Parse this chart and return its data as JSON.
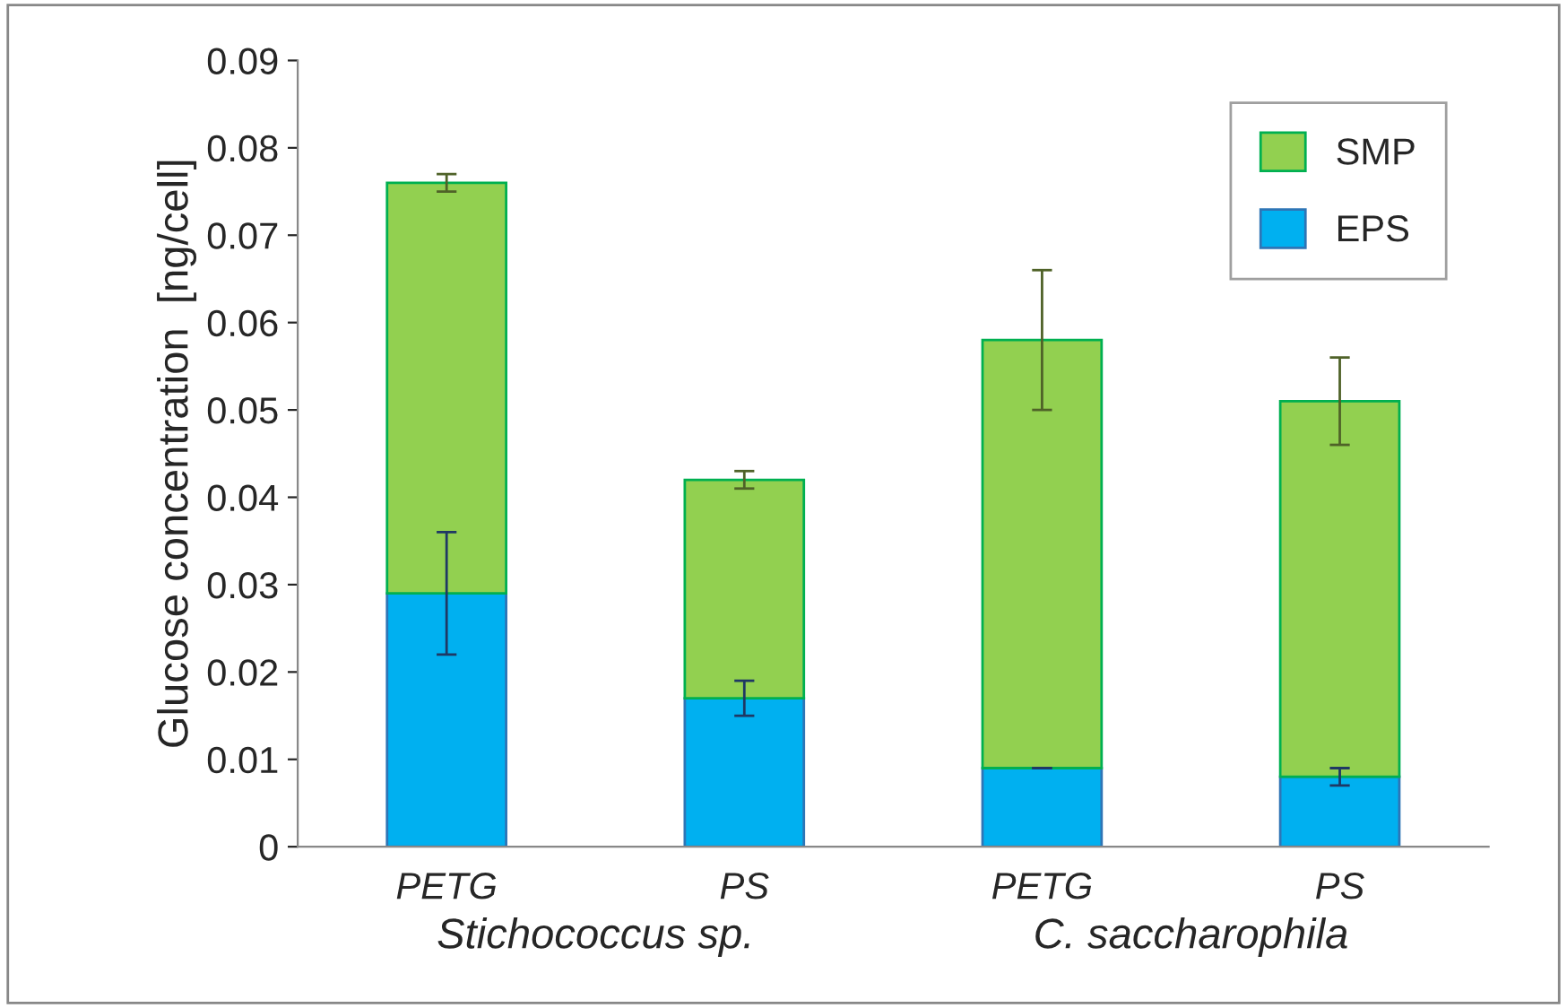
{
  "chart_data": {
    "type": "bar",
    "stacked": true,
    "ylabel": "Glucose concentration  [ng/cell]",
    "categories": [
      "PETG",
      "PS",
      "PETG",
      "PS"
    ],
    "series": [
      {
        "name": "EPS",
        "color": "#00b0f0",
        "values": [
          0.029,
          0.017,
          0.009,
          0.008
        ],
        "errors": [
          0.007,
          0.002,
          0,
          0.001
        ]
      },
      {
        "name": "SMP",
        "color": "#92d050",
        "values": [
          0.047,
          0.025,
          0.049,
          0.043
        ],
        "errors": [
          0.001,
          0.001,
          0.008,
          0.005
        ]
      }
    ],
    "ylim": [
      0,
      0.09
    ],
    "yticks": [
      0,
      0.01,
      0.02,
      0.03,
      0.04,
      0.05,
      0.06,
      0.07,
      0.08,
      0.09
    ],
    "grid": false,
    "legend": "top right",
    "annotations": [
      "Stichococcus sp.",
      "C. saccharophila"
    ]
  }
}
